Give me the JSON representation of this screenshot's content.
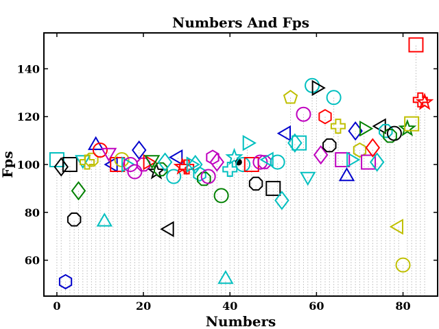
{
  "chart_data": {
    "type": "scatter",
    "title": "Numbers And Fps",
    "xlabel": "Numbers",
    "ylabel": "Fps",
    "xlim": [
      -3,
      88
    ],
    "ylim": [
      45,
      155
    ],
    "xticks": [
      0,
      20,
      40,
      60,
      80
    ],
    "yticks": [
      60,
      80,
      100,
      120,
      140
    ],
    "grid": false,
    "stems": true,
    "palette": [
      "#0000cc",
      "#000000",
      "#00bfbf",
      "#008000",
      "#bfbf00",
      "#bf00bf",
      "#ff0000"
    ],
    "points": [
      {
        "x": 0,
        "y": 102,
        "marker": "square",
        "color": "#00bfbf"
      },
      {
        "x": 1,
        "y": 99,
        "marker": "diamond",
        "color": "#000000"
      },
      {
        "x": 2,
        "y": 51,
        "marker": "hexagon",
        "color": "#0000cc"
      },
      {
        "x": 3,
        "y": 100,
        "marker": "square",
        "color": "#000000"
      },
      {
        "x": 4,
        "y": 77,
        "marker": "octagon",
        "color": "#000000"
      },
      {
        "x": 5,
        "y": 89,
        "marker": "diamond",
        "color": "#008000"
      },
      {
        "x": 6,
        "y": 102,
        "marker": "triangle-down",
        "color": "#00bfbf"
      },
      {
        "x": 7,
        "y": 101,
        "marker": "plus",
        "color": "#bfbf00"
      },
      {
        "x": 8,
        "y": 102,
        "marker": "octagon",
        "color": "#bfbf00"
      },
      {
        "x": 9,
        "y": 108,
        "marker": "triangle-up",
        "color": "#0000cc"
      },
      {
        "x": 10,
        "y": 106,
        "marker": "circle",
        "color": "#ff0000"
      },
      {
        "x": 11,
        "y": 76,
        "marker": "triangle-up",
        "color": "#00bfbf"
      },
      {
        "x": 12,
        "y": 105,
        "marker": "triangle-down",
        "color": "#bf00bf"
      },
      {
        "x": 13,
        "y": 100,
        "marker": "triangle-left",
        "color": "#0000cc"
      },
      {
        "x": 14,
        "y": 100,
        "marker": "square",
        "color": "#ff0000"
      },
      {
        "x": 15,
        "y": 102,
        "marker": "circle",
        "color": "#bfbf00"
      },
      {
        "x": 16,
        "y": 100,
        "marker": "triangle-right",
        "color": "#00bfbf"
      },
      {
        "x": 17,
        "y": 100,
        "marker": "circle",
        "color": "#bf00bf"
      },
      {
        "x": 18,
        "y": 97,
        "marker": "circle",
        "color": "#bf00bf"
      },
      {
        "x": 19,
        "y": 106,
        "marker": "diamond",
        "color": "#0000cc"
      },
      {
        "x": 20,
        "y": 100,
        "marker": "octagon",
        "color": "#bf00bf"
      },
      {
        "x": 21,
        "y": 101,
        "marker": "triangle-right",
        "color": "#ff0000"
      },
      {
        "x": 22,
        "y": 102,
        "marker": "triangle-down",
        "color": "#008000"
      },
      {
        "x": 23,
        "y": 97,
        "marker": "star",
        "color": "#000000"
      },
      {
        "x": 24,
        "y": 98,
        "marker": "octagon",
        "color": "#008000"
      },
      {
        "x": 25,
        "y": 101,
        "marker": "diamond",
        "color": "#00bfbf"
      },
      {
        "x": 26,
        "y": 73,
        "marker": "triangle-left",
        "color": "#000000"
      },
      {
        "x": 27,
        "y": 95,
        "marker": "circle",
        "color": "#00bfbf"
      },
      {
        "x": 28,
        "y": 103,
        "marker": "triangle-left",
        "color": "#0000cc"
      },
      {
        "x": 29,
        "y": 99,
        "marker": "star",
        "color": "#ff0000"
      },
      {
        "x": 30,
        "y": 99,
        "marker": "plus",
        "color": "#ff0000"
      },
      {
        "x": 31,
        "y": 100,
        "marker": "triangle-right",
        "color": "#00bfbf"
      },
      {
        "x": 32,
        "y": 100,
        "marker": "diamond",
        "color": "#00bfbf"
      },
      {
        "x": 33,
        "y": 96,
        "marker": "hexagon",
        "color": "#00bfbf"
      },
      {
        "x": 34,
        "y": 94,
        "marker": "octagon",
        "color": "#008000"
      },
      {
        "x": 35,
        "y": 95,
        "marker": "circle",
        "color": "#bf00bf"
      },
      {
        "x": 36,
        "y": 103,
        "marker": "hexagon",
        "color": "#bf00bf"
      },
      {
        "x": 37,
        "y": 101,
        "marker": "diamond",
        "color": "#bf00bf"
      },
      {
        "x": 38,
        "y": 87,
        "marker": "circle",
        "color": "#008000"
      },
      {
        "x": 39,
        "y": 52,
        "marker": "triangle-up",
        "color": "#00bfbf"
      },
      {
        "x": 40,
        "y": 98,
        "marker": "plus",
        "color": "#00bfbf"
      },
      {
        "x": 41,
        "y": 103,
        "marker": "star",
        "color": "#00bfbf"
      },
      {
        "x": 42,
        "y": 101,
        "marker": "point",
        "color": "#000000"
      },
      {
        "x": 43,
        "y": 100,
        "marker": "circle",
        "color": "#00bfbf"
      },
      {
        "x": 44,
        "y": 109,
        "marker": "triangle-right",
        "color": "#00bfbf"
      },
      {
        "x": 45,
        "y": 100,
        "marker": "square",
        "color": "#ff0000"
      },
      {
        "x": 46,
        "y": 92,
        "marker": "octagon",
        "color": "#000000"
      },
      {
        "x": 47,
        "y": 101,
        "marker": "circle",
        "color": "#bf00bf"
      },
      {
        "x": 48,
        "y": 101,
        "marker": "octagon",
        "color": "#bf00bf"
      },
      {
        "x": 49,
        "y": 102,
        "marker": "triangle-left",
        "color": "#00bfbf"
      },
      {
        "x": 50,
        "y": 90,
        "marker": "square",
        "color": "#000000"
      },
      {
        "x": 51,
        "y": 101,
        "marker": "circle",
        "color": "#00bfbf"
      },
      {
        "x": 52,
        "y": 85,
        "marker": "diamond",
        "color": "#00bfbf"
      },
      {
        "x": 53,
        "y": 113,
        "marker": "triangle-left",
        "color": "#0000cc"
      },
      {
        "x": 54,
        "y": 128,
        "marker": "pentagon",
        "color": "#bfbf00"
      },
      {
        "x": 55,
        "y": 109,
        "marker": "diamond",
        "color": "#00bfbf"
      },
      {
        "x": 56,
        "y": 109,
        "marker": "square",
        "color": "#00bfbf"
      },
      {
        "x": 57,
        "y": 121,
        "marker": "circle",
        "color": "#bf00bf"
      },
      {
        "x": 58,
        "y": 95,
        "marker": "triangle-down",
        "color": "#00bfbf"
      },
      {
        "x": 59,
        "y": 133,
        "marker": "circle",
        "color": "#00bfbf"
      },
      {
        "x": 60,
        "y": 132,
        "marker": "triangle-right",
        "color": "#000000"
      },
      {
        "x": 61,
        "y": 104,
        "marker": "diamond",
        "color": "#bf00bf"
      },
      {
        "x": 62,
        "y": 120,
        "marker": "hexagon",
        "color": "#ff0000"
      },
      {
        "x": 63,
        "y": 108,
        "marker": "octagon",
        "color": "#000000"
      },
      {
        "x": 64,
        "y": 128,
        "marker": "circle",
        "color": "#00bfbf"
      },
      {
        "x": 65,
        "y": 116,
        "marker": "plus",
        "color": "#bfbf00"
      },
      {
        "x": 66,
        "y": 102,
        "marker": "square",
        "color": "#bf00bf"
      },
      {
        "x": 67,
        "y": 95,
        "marker": "triangle-up",
        "color": "#0000cc"
      },
      {
        "x": 68,
        "y": 102,
        "marker": "triangle-right",
        "color": "#00bfbf"
      },
      {
        "x": 69,
        "y": 114,
        "marker": "diamond",
        "color": "#0000cc"
      },
      {
        "x": 70,
        "y": 106,
        "marker": "hexagon",
        "color": "#bfbf00"
      },
      {
        "x": 71,
        "y": 115,
        "marker": "triangle-right",
        "color": "#008000"
      },
      {
        "x": 72,
        "y": 101,
        "marker": "square",
        "color": "#bf00bf"
      },
      {
        "x": 73,
        "y": 107,
        "marker": "diamond",
        "color": "#ff0000"
      },
      {
        "x": 74,
        "y": 101,
        "marker": "diamond",
        "color": "#00bfbf"
      },
      {
        "x": 75,
        "y": 116,
        "marker": "triangle-left",
        "color": "#000000"
      },
      {
        "x": 76,
        "y": 114,
        "marker": "octagon",
        "color": "#00bfbf"
      },
      {
        "x": 77,
        "y": 112,
        "marker": "octagon",
        "color": "#008000"
      },
      {
        "x": 78,
        "y": 113,
        "marker": "circle",
        "color": "#000000"
      },
      {
        "x": 79,
        "y": 74,
        "marker": "triangle-left",
        "color": "#bfbf00"
      },
      {
        "x": 80,
        "y": 58,
        "marker": "circle",
        "color": "#bfbf00"
      },
      {
        "x": 81,
        "y": 115,
        "marker": "star",
        "color": "#008000"
      },
      {
        "x": 82,
        "y": 117,
        "marker": "square",
        "color": "#bfbf00"
      },
      {
        "x": 83,
        "y": 150,
        "marker": "square",
        "color": "#ff0000"
      },
      {
        "x": 84,
        "y": 127,
        "marker": "plus",
        "color": "#ff0000"
      },
      {
        "x": 85,
        "y": 126,
        "marker": "star",
        "color": "#ff0000"
      }
    ]
  }
}
